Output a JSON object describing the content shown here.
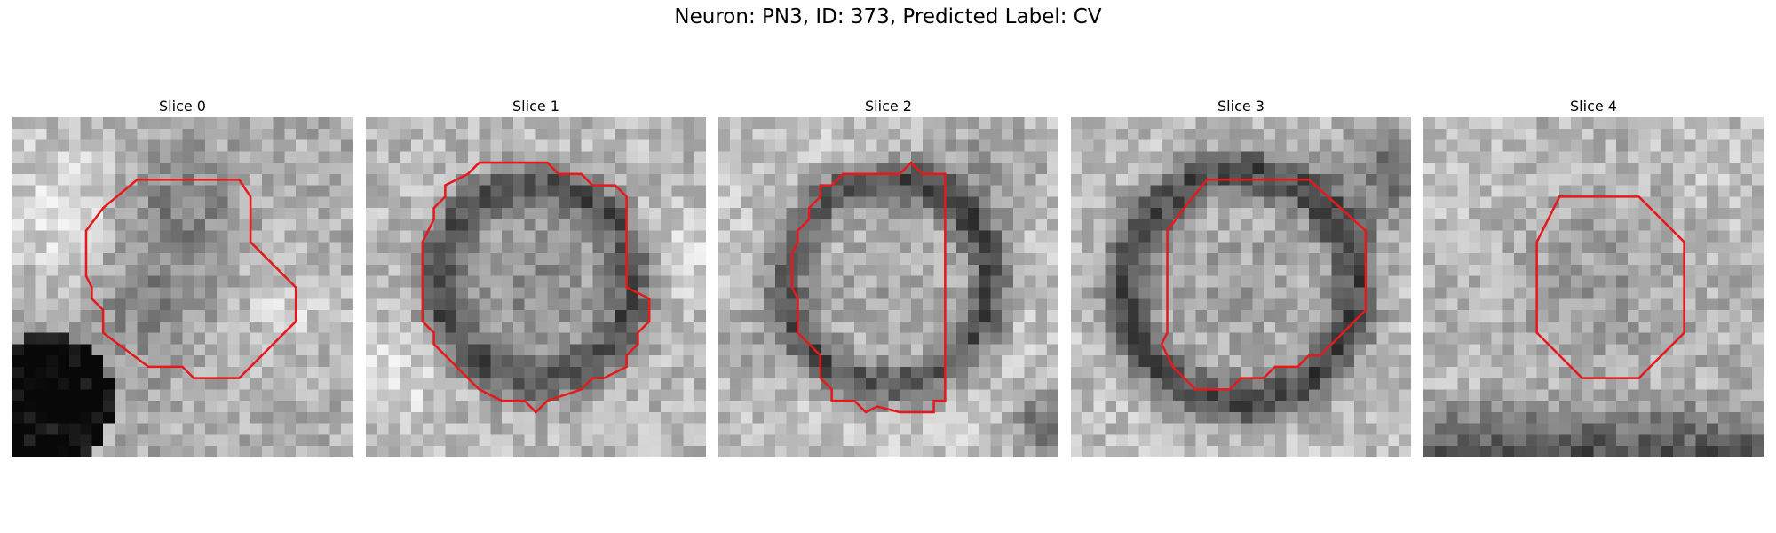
{
  "figure": {
    "title": "Neuron: PN3, ID: 373, Predicted Label: CV"
  },
  "panels": [
    {
      "title": "Slice 0"
    },
    {
      "title": "Slice 1"
    },
    {
      "title": "Slice 2"
    },
    {
      "title": "Slice 3"
    },
    {
      "title": "Slice 4"
    }
  ],
  "colors": {
    "contour": "#e41a1c",
    "background": "#ffffff"
  }
}
